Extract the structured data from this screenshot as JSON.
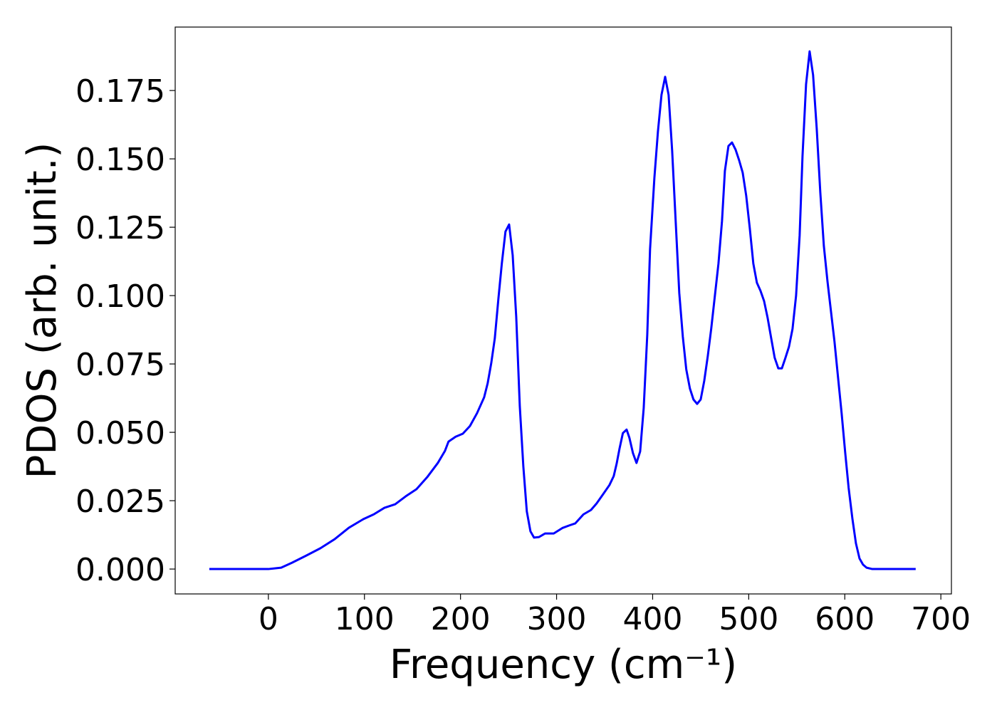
{
  "chart_data": {
    "type": "line",
    "xlabel": "Frequency (cm⁻¹)",
    "ylabel": "PDOS (arb. unit.)",
    "xlim": [
      -97,
      711
    ],
    "ylim": [
      -0.0091,
      0.1982
    ],
    "xticks": [
      0,
      100,
      200,
      300,
      400,
      500,
      600,
      700
    ],
    "yticks": [
      {
        "value": 0,
        "label": "0.000"
      },
      {
        "value": 0.025,
        "label": "0.025"
      },
      {
        "value": 0.05,
        "label": "0.050"
      },
      {
        "value": 0.075,
        "label": "0.075"
      },
      {
        "value": 0.1,
        "label": "0.100"
      },
      {
        "value": 0.125,
        "label": "0.125"
      },
      {
        "value": 0.15,
        "label": "0.150"
      },
      {
        "value": 0.175,
        "label": "0.175"
      }
    ],
    "grid": false,
    "x": [
      -61.5,
      0,
      13.3,
      24.5,
      39.3,
      54.1,
      68.9,
      83.8,
      98.6,
      109.7,
      120.8,
      132,
      143,
      154.2,
      165.3,
      176.4,
      183.8,
      187.5,
      194.9,
      202.4,
      209.8,
      217.2,
      224.6,
      228.3,
      232,
      235.7,
      239.4,
      243,
      246.8,
      250.6,
      254.3,
      258,
      261.7,
      265.4,
      269,
      272.8,
      276.5,
      281.7,
      288,
      297,
      306,
      313.6,
      319.5,
      328,
      335.8,
      341.7,
      347.7,
      355,
      359.5,
      362.5,
      365.5,
      369,
      372.9,
      375.8,
      379.5,
      383.2,
      387,
      390.7,
      394.4,
      397.3,
      401.8,
      405.5,
      409.2,
      413,
      416.6,
      420.3,
      424,
      427.7,
      431.4,
      435,
      438.8,
      442.5,
      446.3,
      450,
      453.7,
      457.4,
      461,
      464.8,
      468.5,
      472.2,
      475.2,
      478.9,
      482.6,
      486.3,
      490,
      493.7,
      497.4,
      501.1,
      504.8,
      508.5,
      512.2,
      516,
      519.6,
      523.4,
      527,
      530.8,
      534.5,
      538,
      541.9,
      545.6,
      549.3,
      553,
      556,
      559.7,
      563.4,
      567,
      570.8,
      574.5,
      578.2,
      582,
      585.6,
      589.3,
      593,
      596.7,
      600.4,
      604,
      607.9,
      611.6,
      615.3,
      619,
      622.7,
      628.6,
      673.8
    ],
    "series": [
      {
        "name": "PDOS",
        "color": "#0000ff",
        "values": [
          0,
          0,
          0.0005,
          0.0023,
          0.0049,
          0.0076,
          0.0109,
          0.0151,
          0.0182,
          0.02,
          0.0224,
          0.0237,
          0.0266,
          0.0292,
          0.0336,
          0.0388,
          0.0432,
          0.0466,
          0.0484,
          0.0495,
          0.0523,
          0.057,
          0.0628,
          0.068,
          0.0753,
          0.0844,
          0.0987,
          0.1117,
          0.1234,
          0.126,
          0.1148,
          0.0922,
          0.0596,
          0.0375,
          0.0211,
          0.0138,
          0.0115,
          0.0117,
          0.013,
          0.013,
          0.015,
          0.016,
          0.0167,
          0.02,
          0.0216,
          0.024,
          0.027,
          0.0307,
          0.034,
          0.0385,
          0.044,
          0.0497,
          0.051,
          0.048,
          0.0424,
          0.0388,
          0.043,
          0.0589,
          0.0857,
          0.117,
          0.143,
          0.16,
          0.1734,
          0.18,
          0.1734,
          0.153,
          0.127,
          0.101,
          0.085,
          0.073,
          0.066,
          0.062,
          0.0604,
          0.062,
          0.0688,
          0.0779,
          0.088,
          0.1,
          0.1117,
          0.1273,
          0.1456,
          0.1547,
          0.156,
          0.1534,
          0.1495,
          0.145,
          0.1365,
          0.1247,
          0.1117,
          0.1047,
          0.1018,
          0.098,
          0.092,
          0.0844,
          0.0773,
          0.0734,
          0.0734,
          0.077,
          0.0813,
          0.0878,
          0.1,
          0.122,
          0.151,
          0.1773,
          0.1893,
          0.1807,
          0.161,
          0.1378,
          0.1182,
          0.1052,
          0.0943,
          0.0831,
          0.07,
          0.057,
          0.0427,
          0.0297,
          0.0185,
          0.0094,
          0.0039,
          0.0016,
          0.0005,
          0,
          0
        ]
      }
    ]
  }
}
